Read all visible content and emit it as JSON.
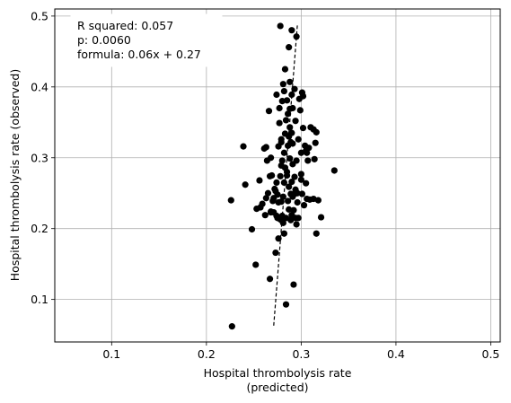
{
  "chart_data": {
    "type": "scatter",
    "xlabel_line1": "Hospital thrombolysis rate",
    "xlabel_line2": "(predicted)",
    "ylabel": "Hospital thrombolysis rate (observed)",
    "xlim": [
      0.04,
      0.51
    ],
    "ylim": [
      0.04,
      0.51
    ],
    "xticks": [
      0.1,
      0.2,
      0.3,
      0.4,
      0.5
    ],
    "yticks": [
      0.1,
      0.2,
      0.3,
      0.4,
      0.5
    ],
    "xtick_labels": [
      "0.1",
      "0.2",
      "0.3",
      "0.4",
      "0.5"
    ],
    "ytick_labels": [
      "0.1",
      "0.2",
      "0.3",
      "0.4",
      "0.5"
    ],
    "grid": true,
    "marker_color": "#000000",
    "line_color": "#000000",
    "annotation": {
      "r_squared": "R squared: 0.057",
      "p": "p: 0.0060",
      "formula": "formula: 0.06x + 0.27"
    },
    "fit_line": {
      "x": [
        0.271,
        0.296
      ],
      "y": [
        0.063,
        0.488
      ]
    },
    "points": [
      [
        0.227,
        0.062
      ],
      [
        0.226,
        0.24
      ],
      [
        0.239,
        0.316
      ],
      [
        0.241,
        0.262
      ],
      [
        0.248,
        0.199
      ],
      [
        0.252,
        0.149
      ],
      [
        0.253,
        0.228
      ],
      [
        0.256,
        0.268
      ],
      [
        0.257,
        0.23
      ],
      [
        0.259,
        0.235
      ],
      [
        0.261,
        0.313
      ],
      [
        0.262,
        0.219
      ],
      [
        0.263,
        0.315
      ],
      [
        0.263,
        0.243
      ],
      [
        0.264,
        0.296
      ],
      [
        0.265,
        0.25
      ],
      [
        0.266,
        0.366
      ],
      [
        0.267,
        0.274
      ],
      [
        0.267,
        0.129
      ],
      [
        0.268,
        0.224
      ],
      [
        0.268,
        0.223
      ],
      [
        0.268,
        0.3
      ],
      [
        0.269,
        0.275
      ],
      [
        0.27,
        0.239
      ],
      [
        0.271,
        0.223
      ],
      [
        0.271,
        0.243
      ],
      [
        0.272,
        0.256
      ],
      [
        0.273,
        0.253
      ],
      [
        0.273,
        0.166
      ],
      [
        0.274,
        0.265
      ],
      [
        0.274,
        0.218
      ],
      [
        0.274,
        0.389
      ],
      [
        0.275,
        0.248
      ],
      [
        0.275,
        0.215
      ],
      [
        0.276,
        0.316
      ],
      [
        0.276,
        0.186
      ],
      [
        0.276,
        0.237
      ],
      [
        0.277,
        0.349
      ],
      [
        0.277,
        0.37
      ],
      [
        0.278,
        0.486
      ],
      [
        0.278,
        0.213
      ],
      [
        0.278,
        0.274
      ],
      [
        0.279,
        0.289
      ],
      [
        0.279,
        0.322
      ],
      [
        0.279,
        0.238
      ],
      [
        0.279,
        0.326
      ],
      [
        0.28,
        0.38
      ],
      [
        0.28,
        0.218
      ],
      [
        0.28,
        0.296
      ],
      [
        0.28,
        0.211
      ],
      [
        0.281,
        0.404
      ],
      [
        0.281,
        0.208
      ],
      [
        0.281,
        0.245
      ],
      [
        0.282,
        0.265
      ],
      [
        0.282,
        0.307
      ],
      [
        0.282,
        0.394
      ],
      [
        0.282,
        0.193
      ],
      [
        0.283,
        0.425
      ],
      [
        0.283,
        0.334
      ],
      [
        0.283,
        0.286
      ],
      [
        0.284,
        0.093
      ],
      [
        0.284,
        0.353
      ],
      [
        0.284,
        0.215
      ],
      [
        0.285,
        0.381
      ],
      [
        0.285,
        0.275
      ],
      [
        0.285,
        0.28
      ],
      [
        0.286,
        0.317
      ],
      [
        0.286,
        0.239
      ],
      [
        0.286,
        0.362
      ],
      [
        0.287,
        0.456
      ],
      [
        0.287,
        0.33
      ],
      [
        0.287,
        0.259
      ],
      [
        0.287,
        0.227
      ],
      [
        0.288,
        0.407
      ],
      [
        0.288,
        0.343
      ],
      [
        0.288,
        0.299
      ],
      [
        0.288,
        0.369
      ],
      [
        0.289,
        0.322
      ],
      [
        0.289,
        0.249
      ],
      [
        0.289,
        0.212
      ],
      [
        0.29,
        0.48
      ],
      [
        0.29,
        0.389
      ],
      [
        0.29,
        0.335
      ],
      [
        0.29,
        0.266
      ],
      [
        0.29,
        0.219
      ],
      [
        0.291,
        0.37
      ],
      [
        0.291,
        0.32
      ],
      [
        0.291,
        0.291
      ],
      [
        0.291,
        0.245
      ],
      [
        0.292,
        0.121
      ],
      [
        0.292,
        0.226
      ],
      [
        0.293,
        0.397
      ],
      [
        0.293,
        0.273
      ],
      [
        0.293,
        0.249
      ],
      [
        0.294,
        0.352
      ],
      [
        0.294,
        0.255
      ],
      [
        0.294,
        0.215
      ],
      [
        0.295,
        0.296
      ],
      [
        0.295,
        0.206
      ],
      [
        0.295,
        0.471
      ],
      [
        0.296,
        0.25
      ],
      [
        0.296,
        0.237
      ],
      [
        0.297,
        0.326
      ],
      [
        0.297,
        0.215
      ],
      [
        0.298,
        0.383
      ],
      [
        0.299,
        0.367
      ],
      [
        0.3,
        0.307
      ],
      [
        0.3,
        0.277
      ],
      [
        0.3,
        0.269
      ],
      [
        0.301,
        0.249
      ],
      [
        0.301,
        0.392
      ],
      [
        0.302,
        0.342
      ],
      [
        0.302,
        0.387
      ],
      [
        0.303,
        0.233
      ],
      [
        0.304,
        0.317
      ],
      [
        0.305,
        0.264
      ],
      [
        0.305,
        0.31
      ],
      [
        0.306,
        0.242
      ],
      [
        0.306,
        0.307
      ],
      [
        0.307,
        0.296
      ],
      [
        0.308,
        0.314
      ],
      [
        0.309,
        0.241
      ],
      [
        0.31,
        0.343
      ],
      [
        0.313,
        0.34
      ],
      [
        0.313,
        0.242
      ],
      [
        0.314,
        0.298
      ],
      [
        0.315,
        0.321
      ],
      [
        0.316,
        0.193
      ],
      [
        0.316,
        0.336
      ],
      [
        0.318,
        0.24
      ],
      [
        0.321,
        0.216
      ],
      [
        0.335,
        0.282
      ]
    ]
  }
}
